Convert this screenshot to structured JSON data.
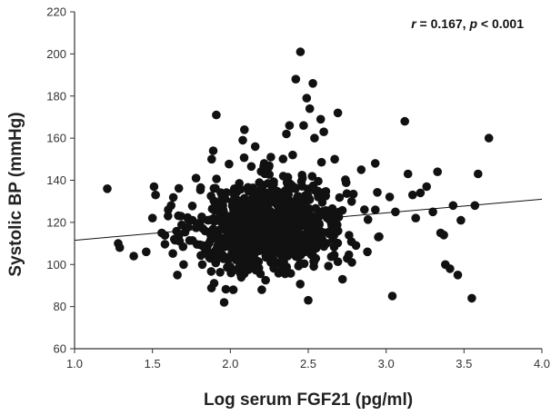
{
  "chart_data": {
    "type": "scatter",
    "title": "",
    "xlabel": "Log serum FGF21 (pg/ml)",
    "ylabel": "Systolic BP (mmHg)",
    "xlim": [
      1.0,
      4.0
    ],
    "ylim": [
      60,
      220
    ],
    "x_ticks": [
      "1.0",
      "1.5",
      "2.0",
      "2.5",
      "3.0",
      "3.5",
      "4.0"
    ],
    "y_ticks": [
      "60",
      "80",
      "100",
      "120",
      "140",
      "160",
      "180",
      "200",
      "220"
    ],
    "annotation": {
      "r_symbol": "r",
      "r_value": " = 0.167, ",
      "p_symbol": "p",
      "p_value": " < 0.001"
    },
    "grid": false,
    "marker_color": "#111111",
    "regression_line": {
      "x": [
        1.0,
        4.0
      ],
      "y": [
        111.5,
        131.0
      ]
    },
    "outliers": [
      {
        "x": 1.21,
        "y": 136
      },
      {
        "x": 1.28,
        "y": 110
      },
      {
        "x": 1.29,
        "y": 108
      },
      {
        "x": 1.38,
        "y": 104
      },
      {
        "x": 1.46,
        "y": 106
      },
      {
        "x": 1.5,
        "y": 122
      },
      {
        "x": 1.51,
        "y": 137
      },
      {
        "x": 1.52,
        "y": 133
      },
      {
        "x": 1.56,
        "y": 115
      },
      {
        "x": 1.6,
        "y": 123
      },
      {
        "x": 1.62,
        "y": 128
      },
      {
        "x": 1.64,
        "y": 112
      },
      {
        "x": 1.66,
        "y": 95
      },
      {
        "x": 1.7,
        "y": 100
      },
      {
        "x": 1.78,
        "y": 141
      },
      {
        "x": 1.82,
        "y": 100
      },
      {
        "x": 1.88,
        "y": 150
      },
      {
        "x": 1.89,
        "y": 154
      },
      {
        "x": 1.91,
        "y": 171
      },
      {
        "x": 1.96,
        "y": 82
      },
      {
        "x": 2.08,
        "y": 159
      },
      {
        "x": 2.09,
        "y": 164
      },
      {
        "x": 2.16,
        "y": 156
      },
      {
        "x": 2.26,
        "y": 151
      },
      {
        "x": 2.34,
        "y": 142
      },
      {
        "x": 2.36,
        "y": 162
      },
      {
        "x": 2.38,
        "y": 166
      },
      {
        "x": 2.4,
        "y": 152
      },
      {
        "x": 2.42,
        "y": 188
      },
      {
        "x": 2.45,
        "y": 201
      },
      {
        "x": 2.47,
        "y": 166
      },
      {
        "x": 2.49,
        "y": 179
      },
      {
        "x": 2.5,
        "y": 83
      },
      {
        "x": 2.51,
        "y": 174
      },
      {
        "x": 2.53,
        "y": 186
      },
      {
        "x": 2.54,
        "y": 160
      },
      {
        "x": 2.58,
        "y": 169
      },
      {
        "x": 2.6,
        "y": 163
      },
      {
        "x": 2.67,
        "y": 150
      },
      {
        "x": 2.69,
        "y": 172
      },
      {
        "x": 2.72,
        "y": 93
      },
      {
        "x": 2.78,
        "y": 101
      },
      {
        "x": 2.84,
        "y": 145
      },
      {
        "x": 2.88,
        "y": 106
      },
      {
        "x": 2.93,
        "y": 148
      },
      {
        "x": 2.95,
        "y": 113
      },
      {
        "x": 3.04,
        "y": 85
      },
      {
        "x": 3.06,
        "y": 125
      },
      {
        "x": 3.12,
        "y": 168
      },
      {
        "x": 3.14,
        "y": 143
      },
      {
        "x": 3.17,
        "y": 133
      },
      {
        "x": 3.19,
        "y": 122
      },
      {
        "x": 3.22,
        "y": 134
      },
      {
        "x": 3.26,
        "y": 137
      },
      {
        "x": 3.3,
        "y": 125
      },
      {
        "x": 3.33,
        "y": 144
      },
      {
        "x": 3.35,
        "y": 115
      },
      {
        "x": 3.37,
        "y": 114
      },
      {
        "x": 3.38,
        "y": 100
      },
      {
        "x": 3.41,
        "y": 98
      },
      {
        "x": 3.43,
        "y": 128
      },
      {
        "x": 3.46,
        "y": 95
      },
      {
        "x": 3.48,
        "y": 121
      },
      {
        "x": 3.55,
        "y": 84
      },
      {
        "x": 3.57,
        "y": 128
      },
      {
        "x": 3.59,
        "y": 143
      },
      {
        "x": 3.66,
        "y": 160
      }
    ],
    "core_cluster": {
      "n": 880,
      "x_center": 2.25,
      "x_sd": 0.24,
      "x_range": [
        1.58,
        3.15
      ],
      "y_center": 118.5,
      "y_sd": 11,
      "y_range": [
        88,
        158
      ],
      "slope": 6.5
    }
  }
}
